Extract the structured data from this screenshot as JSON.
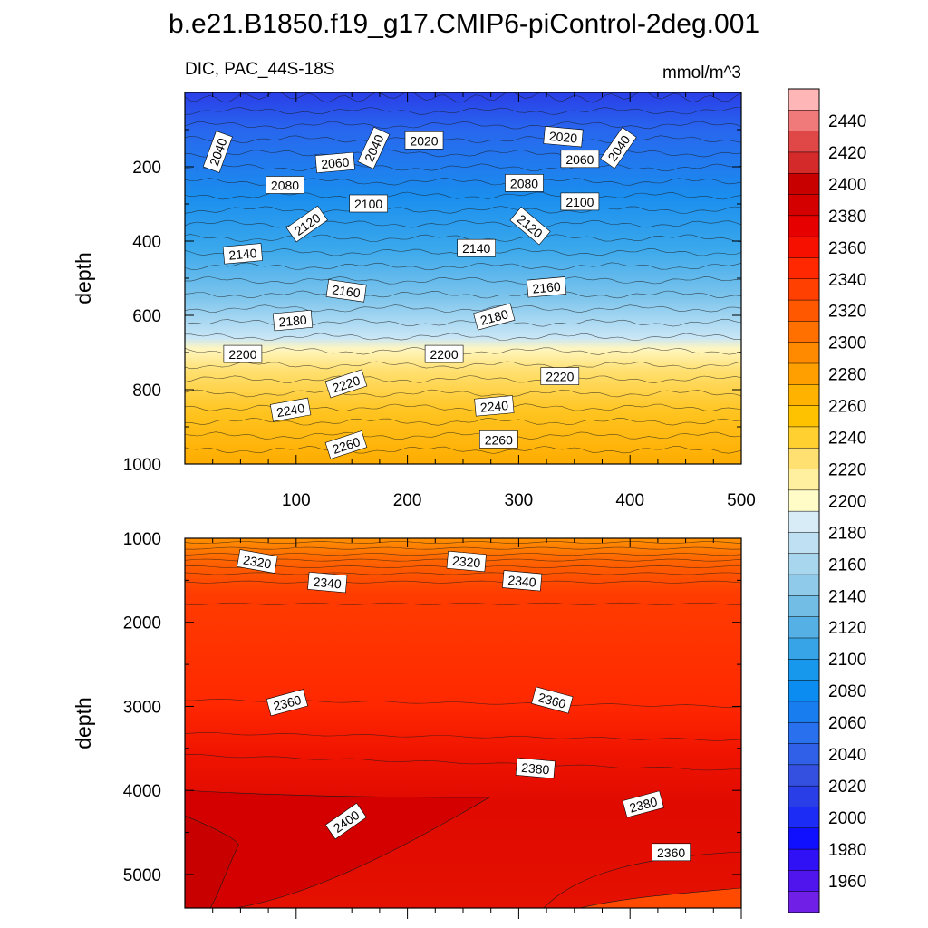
{
  "title": "b.e21.B1850.f19_g17.CMIP6-piControl-2deg.001",
  "subtitle_left": "DIC, PAC_44S-18S",
  "subtitle_right": "mmol/m^3",
  "chart_data": [
    {
      "type": "contour",
      "panel": "upper",
      "ylabel": "depth",
      "xlim": [
        0,
        500
      ],
      "ylim": [
        1000,
        0
      ],
      "xticks": [
        "100",
        "200",
        "300",
        "400",
        "500"
      ],
      "yticks": [
        "200",
        "400",
        "600",
        "800",
        "1000"
      ],
      "contour_levels": [
        2000,
        2020,
        2040,
        2060,
        2080,
        2100,
        2120,
        2140,
        2160,
        2180,
        2200,
        2220,
        2240,
        2260,
        2280,
        2300
      ],
      "contour_labels": [
        {
          "x": 30,
          "depth": 160,
          "text": "2040"
        },
        {
          "x": 215,
          "depth": 130,
          "text": "2020"
        },
        {
          "x": 170,
          "depth": 150,
          "text": "2040"
        },
        {
          "x": 340,
          "depth": 120,
          "text": "2020"
        },
        {
          "x": 390,
          "depth": 150,
          "text": "2040"
        },
        {
          "x": 135,
          "depth": 190,
          "text": "2060"
        },
        {
          "x": 355,
          "depth": 180,
          "text": "2060"
        },
        {
          "x": 90,
          "depth": 250,
          "text": "2080"
        },
        {
          "x": 305,
          "depth": 245,
          "text": "2080"
        },
        {
          "x": 165,
          "depth": 300,
          "text": "2100"
        },
        {
          "x": 355,
          "depth": 295,
          "text": "2100"
        },
        {
          "x": 110,
          "depth": 355,
          "text": "2120"
        },
        {
          "x": 310,
          "depth": 360,
          "text": "2120"
        },
        {
          "x": 52,
          "depth": 435,
          "text": "2140"
        },
        {
          "x": 262,
          "depth": 420,
          "text": "2140"
        },
        {
          "x": 145,
          "depth": 535,
          "text": "2160"
        },
        {
          "x": 325,
          "depth": 525,
          "text": "2160"
        },
        {
          "x": 97,
          "depth": 615,
          "text": "2180"
        },
        {
          "x": 278,
          "depth": 605,
          "text": "2180"
        },
        {
          "x": 52,
          "depth": 705,
          "text": "2200"
        },
        {
          "x": 233,
          "depth": 705,
          "text": "2200"
        },
        {
          "x": 145,
          "depth": 785,
          "text": "2220"
        },
        {
          "x": 337,
          "depth": 765,
          "text": "2220"
        },
        {
          "x": 95,
          "depth": 855,
          "text": "2240"
        },
        {
          "x": 278,
          "depth": 845,
          "text": "2240"
        },
        {
          "x": 145,
          "depth": 950,
          "text": "2260"
        },
        {
          "x": 282,
          "depth": 935,
          "text": "2260"
        }
      ]
    },
    {
      "type": "contour",
      "panel": "lower",
      "ylabel": "depth",
      "xlim": [
        0,
        500
      ],
      "ylim": [
        5400,
        1000
      ],
      "yticks": [
        "1000",
        "2000",
        "3000",
        "4000",
        "5000"
      ],
      "contour_levels": [
        2300,
        2320,
        2340,
        2360,
        2380,
        2400,
        2420
      ],
      "contour_labels": [
        {
          "x": 65,
          "depth": 1280,
          "text": "2320"
        },
        {
          "x": 253,
          "depth": 1280,
          "text": "2320"
        },
        {
          "x": 128,
          "depth": 1530,
          "text": "2340"
        },
        {
          "x": 303,
          "depth": 1510,
          "text": "2340"
        },
        {
          "x": 92,
          "depth": 2960,
          "text": "2360"
        },
        {
          "x": 330,
          "depth": 2930,
          "text": "2360"
        },
        {
          "x": 315,
          "depth": 3740,
          "text": "2380"
        },
        {
          "x": 412,
          "depth": 4170,
          "text": "2380"
        },
        {
          "x": 145,
          "depth": 4370,
          "text": "2400"
        },
        {
          "x": 437,
          "depth": 4740,
          "text": "2360"
        }
      ]
    }
  ],
  "colorbar": {
    "labels": [
      "2440",
      "2420",
      "2400",
      "2380",
      "2360",
      "2340",
      "2320",
      "2300",
      "2280",
      "2260",
      "2240",
      "2220",
      "2200",
      "2180",
      "2160",
      "2140",
      "2120",
      "2100",
      "2080",
      "2060",
      "2040",
      "2020",
      "2000",
      "1980",
      "1960"
    ],
    "colors": [
      "#ffb6b6",
      "#f07a7a",
      "#e04848",
      "#d42a2a",
      "#c80000",
      "#d40000",
      "#e60000",
      "#f51000",
      "#ff2800",
      "#ff4000",
      "#ff5800",
      "#ff7000",
      "#ff8a00",
      "#ffa000",
      "#ffb200",
      "#ffc200",
      "#ffd030",
      "#ffe070",
      "#fff0a0",
      "#fffcc8",
      "#d8ecf8",
      "#bfe0f2",
      "#a8d6ee",
      "#8fcaea",
      "#72bde6",
      "#55b0e6",
      "#38a4e8",
      "#1898ec",
      "#0a8cf0",
      "#187ef0",
      "#2870ee",
      "#3060e8",
      "#3450e0",
      "#2a3ee8",
      "#1c2cf4",
      "#1010ff",
      "#3010f4",
      "#5014ec",
      "#7020e6"
    ]
  },
  "colors": {
    "background": "#ffffff",
    "axis": "#000000"
  }
}
